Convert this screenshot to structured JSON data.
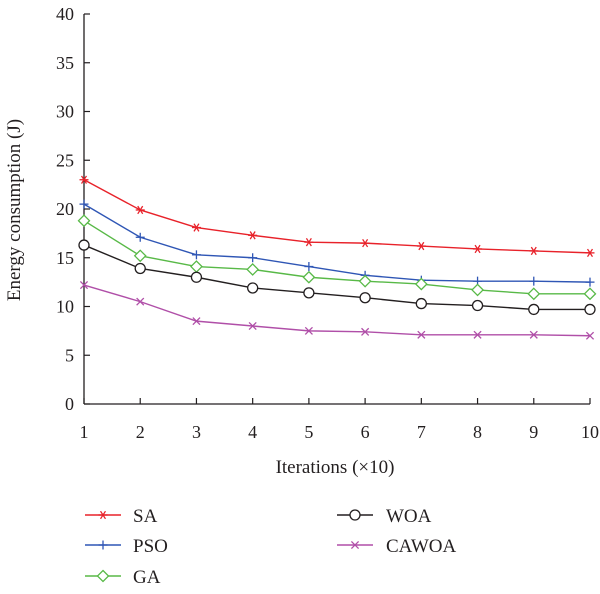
{
  "chart_data": {
    "type": "line",
    "title": "",
    "xlabel": "Iterations (×10)",
    "ylabel": "Energy consumption (J)",
    "x": [
      1,
      2,
      3,
      4,
      5,
      6,
      7,
      8,
      9,
      10
    ],
    "xlim": [
      1,
      10
    ],
    "ylim": [
      0,
      40
    ],
    "x_ticks": [
      "1",
      "2",
      "3",
      "4",
      "5",
      "6",
      "7",
      "8",
      "9",
      "10"
    ],
    "y_ticks": [
      "0",
      "5",
      "10",
      "15",
      "20",
      "25",
      "30",
      "35",
      "40"
    ],
    "grid": false,
    "legend_position": "below",
    "series": [
      {
        "name": "SA",
        "color": "#e8222a",
        "marker": "asterisk",
        "values": [
          23.0,
          19.9,
          18.1,
          17.3,
          16.6,
          16.5,
          16.2,
          15.9,
          15.7,
          15.5
        ]
      },
      {
        "name": "PSO",
        "color": "#2f56b5",
        "marker": "plus",
        "values": [
          20.5,
          17.1,
          15.3,
          15.0,
          14.1,
          13.2,
          12.7,
          12.6,
          12.6,
          12.5
        ]
      },
      {
        "name": "GA",
        "color": "#58b947",
        "marker": "diamond",
        "values": [
          18.8,
          15.2,
          14.1,
          13.8,
          13.0,
          12.6,
          12.3,
          11.7,
          11.3,
          11.3
        ]
      },
      {
        "name": "WOA",
        "color": "#231f20",
        "marker": "circle",
        "values": [
          16.3,
          13.9,
          13.0,
          11.9,
          11.4,
          10.9,
          10.3,
          10.1,
          9.7,
          9.7
        ]
      },
      {
        "name": "CAWOA",
        "color": "#b04fa8",
        "marker": "x",
        "values": [
          12.2,
          10.5,
          8.5,
          8.0,
          7.5,
          7.4,
          7.1,
          7.1,
          7.1,
          7.0
        ]
      }
    ]
  }
}
